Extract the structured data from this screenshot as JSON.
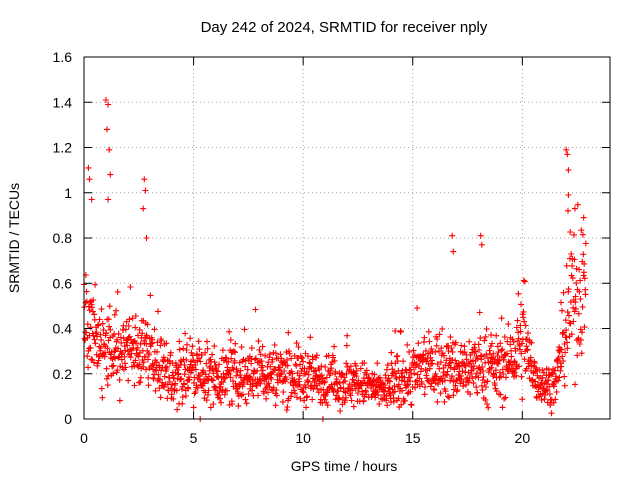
{
  "chart_data": {
    "type": "scatter",
    "title": "Day 242 of 2024, SRMTID for receiver nply",
    "xlabel": "GPS time / hours",
    "ylabel": "SRMTID / TECUs",
    "xlim": [
      0,
      24
    ],
    "ylim": [
      0,
      1.6
    ],
    "xticks": [
      0,
      5,
      10,
      15,
      20
    ],
    "xtick_labels": [
      "0",
      "5",
      "10",
      "15",
      "20"
    ],
    "yticks": [
      0,
      0.2,
      0.4,
      0.6,
      0.8,
      1,
      1.2,
      1.4,
      1.6
    ],
    "ytick_labels": [
      "0",
      "0.2",
      "0.4",
      "0.6",
      "0.8",
      "1",
      "1.2",
      "1.4",
      "1.6"
    ],
    "grid": true,
    "legend": "none",
    "marker": "+",
    "series": [
      {
        "name": "SRMTID",
        "color": "#ff0000",
        "profile_hours": [
          0,
          0.3,
          0.7,
          1.0,
          1.3,
          2.0,
          2.8,
          3.5,
          4.0,
          5.0,
          6.0,
          7.0,
          8.0,
          9.0,
          10.0,
          11.0,
          12.0,
          13.0,
          13.5,
          14.0,
          15.0,
          16.0,
          17.0,
          18.0,
          19.0,
          19.7,
          20.0,
          20.5,
          21.0,
          21.5,
          21.8,
          22.2,
          22.6,
          22.9
        ],
        "profile_median": [
          0.42,
          0.38,
          0.3,
          0.3,
          0.3,
          0.3,
          0.3,
          0.22,
          0.2,
          0.2,
          0.19,
          0.19,
          0.2,
          0.2,
          0.19,
          0.17,
          0.16,
          0.15,
          0.12,
          0.15,
          0.2,
          0.23,
          0.22,
          0.23,
          0.22,
          0.28,
          0.35,
          0.2,
          0.15,
          0.15,
          0.3,
          0.5,
          0.55,
          0.6
        ],
        "profile_spread": [
          0.15,
          0.15,
          0.1,
          0.1,
          0.1,
          0.1,
          0.12,
          0.08,
          0.08,
          0.08,
          0.08,
          0.08,
          0.09,
          0.08,
          0.08,
          0.07,
          0.07,
          0.06,
          0.05,
          0.07,
          0.09,
          0.1,
          0.09,
          0.09,
          0.09,
          0.1,
          0.15,
          0.07,
          0.06,
          0.06,
          0.1,
          0.18,
          0.18,
          0.15
        ],
        "notable_points": [
          {
            "x": 0.2,
            "y": 1.11
          },
          {
            "x": 0.25,
            "y": 1.06
          },
          {
            "x": 0.35,
            "y": 0.97
          },
          {
            "x": 1.0,
            "y": 1.41
          },
          {
            "x": 1.1,
            "y": 1.39
          },
          {
            "x": 1.05,
            "y": 1.28
          },
          {
            "x": 1.15,
            "y": 1.19
          },
          {
            "x": 1.2,
            "y": 1.08
          },
          {
            "x": 1.1,
            "y": 0.97
          },
          {
            "x": 2.75,
            "y": 1.06
          },
          {
            "x": 2.8,
            "y": 1.01
          },
          {
            "x": 2.7,
            "y": 0.93
          },
          {
            "x": 2.85,
            "y": 0.8
          },
          {
            "x": 16.8,
            "y": 0.81
          },
          {
            "x": 16.85,
            "y": 0.74
          },
          {
            "x": 18.1,
            "y": 0.81
          },
          {
            "x": 18.15,
            "y": 0.77
          },
          {
            "x": 15.2,
            "y": 0.49
          },
          {
            "x": 22.0,
            "y": 1.19
          },
          {
            "x": 22.05,
            "y": 1.17
          },
          {
            "x": 22.1,
            "y": 1.1
          },
          {
            "x": 22.1,
            "y": 0.99
          },
          {
            "x": 22.4,
            "y": 0.93
          },
          {
            "x": 22.8,
            "y": 0.89
          },
          {
            "x": 5.3,
            "y": 0.0
          },
          {
            "x": 10.9,
            "y": 0.0
          }
        ]
      }
    ]
  }
}
